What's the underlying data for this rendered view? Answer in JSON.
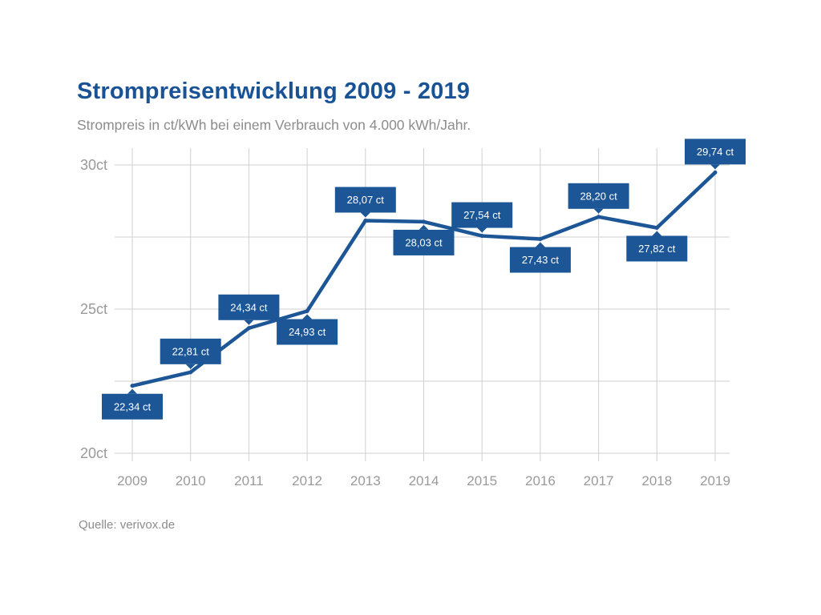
{
  "title": "Strompreisentwicklung 2009 - 2019",
  "subtitle": "Strompreis in ct/kWh bei einem Verbrauch von 4.000 kWh/Jahr.",
  "source": "Quelle: verivox.de",
  "colors": {
    "line": "#1c5696",
    "label_box": "#1c5696",
    "grid": "#cfcfcf",
    "axis_text": "#9a9a9a",
    "title": "#1a5296"
  },
  "chart_data": {
    "type": "line",
    "title": "Strompreisentwicklung 2009 - 2019",
    "subtitle": "Strompreis in ct/kWh bei einem Verbrauch von 4.000 kWh/Jahr.",
    "xlabel": "",
    "ylabel": "",
    "categories": [
      "2009",
      "2010",
      "2011",
      "2012",
      "2013",
      "2014",
      "2015",
      "2016",
      "2017",
      "2018",
      "2019"
    ],
    "series": [
      {
        "values": [
          22.34,
          22.81,
          24.34,
          24.93,
          28.07,
          28.03,
          27.54,
          27.43,
          28.2,
          27.82,
          29.74
        ],
        "labels": [
          "22,34 ct",
          "22,81 ct",
          "24,34 ct",
          "24,93 ct",
          "28,07 ct",
          "28,03 ct",
          "27,54 ct",
          "27,43 ct",
          "28,20 ct",
          "27,82 ct",
          "29,74 ct"
        ],
        "label_positions": [
          "below",
          "above",
          "above",
          "below",
          "above",
          "below",
          "above",
          "below",
          "above",
          "below",
          "above"
        ]
      }
    ],
    "ylim": [
      20,
      30
    ],
    "yticks": [
      20,
      22.5,
      25,
      27.5,
      30
    ],
    "ytick_labels": [
      "20ct",
      "",
      "25ct",
      "",
      "30ct"
    ],
    "grid": true,
    "legend": "none"
  }
}
